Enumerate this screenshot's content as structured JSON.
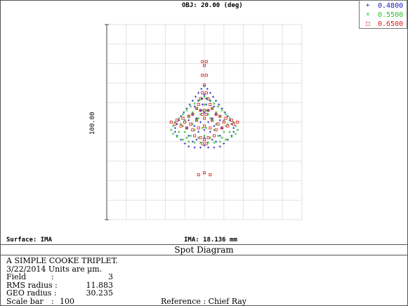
{
  "header": {
    "object_label": "OBJ: 20.00 (deg)",
    "surface_label": "Surface: IMA",
    "image_label": "IMA: 18.136 mm"
  },
  "legend": [
    {
      "label": "0.4800",
      "color": "#1a1ab8",
      "marker": "plus-icon"
    },
    {
      "label": "0.5500",
      "color": "#29c029",
      "marker": "x-icon"
    },
    {
      "label": "0.6500",
      "color": "#d21d1d",
      "marker": "square-icon"
    }
  ],
  "scale_label": "100.00",
  "title": "Spot Diagram",
  "info": {
    "line1": "A SIMPLE COOKE TRIPLET.",
    "line2": "3/22/2014  Units are µm.",
    "field_label": "Field",
    "field_value": "3",
    "rms_label": "RMS radius :",
    "rms_value": "11.883",
    "geo_label": "GEO radius :",
    "geo_value": "30.235",
    "scale_bar_label": "Scale bar",
    "scale_bar_value": "100",
    "reference_label": "Reference",
    "reference_value": "Chief Ray"
  },
  "chart_data": {
    "type": "scatter",
    "title": "Spot Diagram",
    "xlabel": "",
    "ylabel": "100.00",
    "xlim": [
      -50,
      50
    ],
    "ylim": [
      -50,
      50
    ],
    "grid": true,
    "legend_position": "top-right",
    "series": [
      {
        "name": "0.4800",
        "color": "#1a1ab8",
        "points": [
          [
            0,
            18.5
          ],
          [
            -1.5,
            17
          ],
          [
            1.5,
            17
          ],
          [
            -3,
            15
          ],
          [
            3,
            15
          ],
          [
            -4.5,
            13
          ],
          [
            4.5,
            13
          ],
          [
            -6,
            11
          ],
          [
            6,
            11
          ],
          [
            -7.5,
            9
          ],
          [
            7.5,
            9
          ],
          [
            -9,
            7
          ],
          [
            9,
            7
          ],
          [
            -10.5,
            5
          ],
          [
            10.5,
            5
          ],
          [
            -12,
            3
          ],
          [
            12,
            3
          ],
          [
            -13,
            1
          ],
          [
            13,
            1
          ],
          [
            -14,
            -1
          ],
          [
            14,
            -1
          ],
          [
            -15,
            -3
          ],
          [
            15,
            -3
          ],
          [
            -15,
            -5
          ],
          [
            15,
            -5
          ],
          [
            -14,
            -7
          ],
          [
            14,
            -7
          ],
          [
            -12,
            -9
          ],
          [
            12,
            -9
          ],
          [
            -10,
            -11
          ],
          [
            10,
            -11
          ],
          [
            -8,
            -12.5
          ],
          [
            8,
            -12.5
          ],
          [
            -5,
            -13
          ],
          [
            5,
            -13
          ],
          [
            -2,
            -13
          ],
          [
            2,
            -13
          ],
          [
            0,
            -12
          ],
          [
            -3,
            11
          ],
          [
            3,
            11
          ],
          [
            -5,
            8
          ],
          [
            5,
            8
          ],
          [
            -6,
            4
          ],
          [
            6,
            4
          ],
          [
            -8,
            1
          ],
          [
            8,
            1
          ],
          [
            -9,
            -3
          ],
          [
            9,
            -3
          ],
          [
            -8,
            -7
          ],
          [
            8,
            -7
          ],
          [
            -4,
            -9
          ],
          [
            4,
            -9
          ],
          [
            0,
            -8
          ],
          [
            0,
            14
          ],
          [
            -1,
            12
          ],
          [
            1,
            12
          ],
          [
            -2,
            6
          ],
          [
            2,
            6
          ],
          [
            -4,
            2
          ],
          [
            4,
            2
          ],
          [
            -5,
            -2
          ],
          [
            5,
            -2
          ],
          [
            -3,
            -5
          ],
          [
            3,
            -5
          ],
          [
            0,
            -4
          ],
          [
            -1,
            9
          ],
          [
            1,
            9
          ],
          [
            0,
            5
          ],
          [
            -2,
            0
          ],
          [
            2,
            0
          ],
          [
            -6,
            -10
          ],
          [
            6,
            -10
          ]
        ]
      },
      {
        "name": "0.5500",
        "color": "#29c029",
        "points": [
          [
            0,
            13
          ],
          [
            -1.5,
            12
          ],
          [
            1.5,
            12
          ],
          [
            -3,
            11
          ],
          [
            3,
            11
          ],
          [
            -5,
            9.5
          ],
          [
            5,
            9.5
          ],
          [
            -7,
            8
          ],
          [
            7,
            8
          ],
          [
            -9,
            6
          ],
          [
            9,
            6
          ],
          [
            -11,
            4
          ],
          [
            11,
            4
          ],
          [
            -13,
            2
          ],
          [
            13,
            2
          ],
          [
            -15,
            0
          ],
          [
            15,
            0
          ],
          [
            -16,
            -2
          ],
          [
            16,
            -2
          ],
          [
            -17,
            -4
          ],
          [
            17,
            -4
          ],
          [
            -16,
            -6
          ],
          [
            16,
            -6
          ],
          [
            -14,
            -7.5
          ],
          [
            14,
            -7.5
          ],
          [
            -11,
            -9
          ],
          [
            11,
            -9
          ],
          [
            -8,
            -10
          ],
          [
            8,
            -10
          ],
          [
            -5,
            -10.5
          ],
          [
            5,
            -10.5
          ],
          [
            -2,
            -10.5
          ],
          [
            2,
            -10.5
          ],
          [
            -4,
            7
          ],
          [
            4,
            7
          ],
          [
            -6,
            5
          ],
          [
            6,
            5
          ],
          [
            -8,
            3
          ],
          [
            8,
            3
          ],
          [
            -10,
            1
          ],
          [
            10,
            1
          ],
          [
            -11,
            -2
          ],
          [
            11,
            -2
          ],
          [
            -10,
            -5
          ],
          [
            10,
            -5
          ],
          [
            -7,
            -7
          ],
          [
            7,
            -7
          ],
          [
            -3,
            -8
          ],
          [
            3,
            -8
          ],
          [
            0,
            -7
          ],
          [
            -2,
            4
          ],
          [
            2,
            4
          ],
          [
            -4,
            1
          ],
          [
            4,
            1
          ],
          [
            -6,
            -1
          ],
          [
            6,
            -1
          ],
          [
            -5,
            -4
          ],
          [
            5,
            -4
          ],
          [
            -1,
            -3
          ],
          [
            1,
            -3
          ],
          [
            0,
            9
          ],
          [
            -1,
            6
          ],
          [
            1,
            6
          ],
          [
            -3,
            2
          ],
          [
            3,
            2
          ],
          [
            -13,
            -5
          ],
          [
            13,
            -5
          ],
          [
            -12,
            -1
          ],
          [
            12,
            -1
          ],
          [
            -9,
            -8
          ],
          [
            9,
            -8
          ]
        ]
      },
      {
        "name": "0.6500",
        "color": "#d21d1d",
        "points": [
          [
            -1,
            31
          ],
          [
            1,
            31
          ],
          [
            0,
            29
          ],
          [
            -1,
            24
          ],
          [
            1,
            24
          ],
          [
            0,
            19
          ],
          [
            -1,
            15
          ],
          [
            1,
            15
          ],
          [
            -2,
            12
          ],
          [
            2,
            12
          ],
          [
            -3,
            9
          ],
          [
            3,
            9
          ],
          [
            -4,
            7
          ],
          [
            4,
            7
          ],
          [
            -2,
            6
          ],
          [
            2,
            6
          ],
          [
            0,
            6
          ],
          [
            -6,
            4
          ],
          [
            6,
            4
          ],
          [
            -8,
            3
          ],
          [
            8,
            3
          ],
          [
            -11,
            2
          ],
          [
            11,
            2
          ],
          [
            -14,
            1
          ],
          [
            14,
            1
          ],
          [
            -17,
            0
          ],
          [
            17,
            0
          ],
          [
            -15,
            -1
          ],
          [
            15,
            -1
          ],
          [
            -12,
            -2
          ],
          [
            12,
            -2
          ],
          [
            -9,
            -3
          ],
          [
            9,
            -3
          ],
          [
            -6,
            -4
          ],
          [
            6,
            -4
          ],
          [
            -3,
            -3
          ],
          [
            3,
            -3
          ],
          [
            0,
            -2
          ],
          [
            -5,
            -7
          ],
          [
            5,
            -7
          ],
          [
            -2,
            -8
          ],
          [
            2,
            -8
          ],
          [
            0,
            -9
          ],
          [
            -1,
            -11
          ],
          [
            1,
            -11
          ],
          [
            -4,
            1
          ],
          [
            4,
            1
          ],
          [
            -7,
            -1
          ],
          [
            7,
            -1
          ],
          [
            -10,
            0
          ],
          [
            10,
            0
          ],
          [
            0,
            2
          ],
          [
            -1,
            4
          ],
          [
            1,
            4
          ],
          [
            0,
            -26
          ],
          [
            -3,
            -27
          ],
          [
            3,
            -27
          ]
        ]
      }
    ]
  }
}
